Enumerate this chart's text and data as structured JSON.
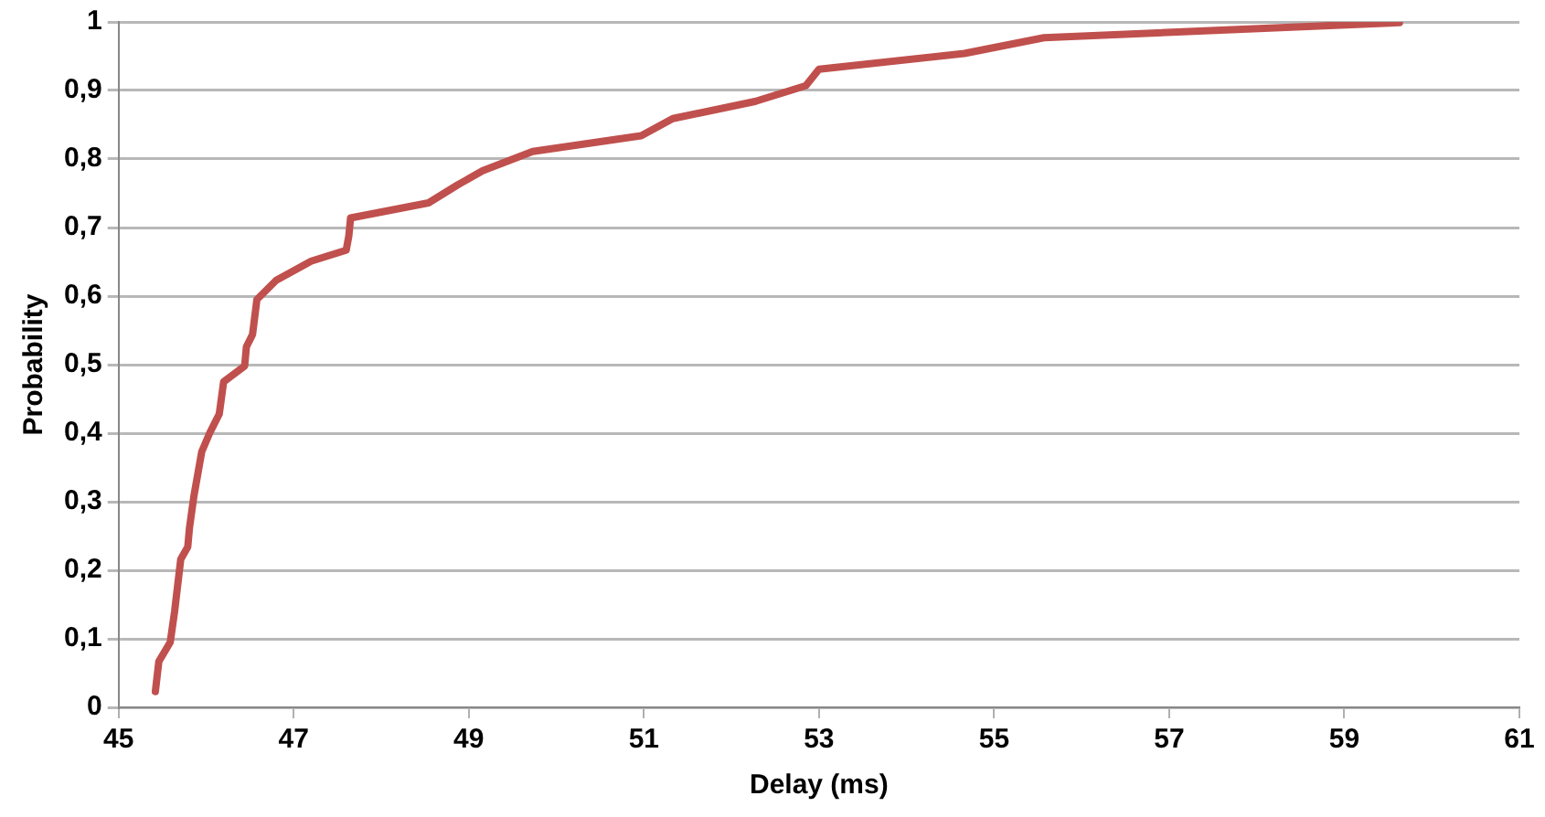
{
  "chart_data": {
    "type": "line",
    "xlabel": "Delay (ms)",
    "ylabel": "Probability",
    "xlim": [
      45,
      61
    ],
    "xticks": [
      45,
      47,
      49,
      51,
      53,
      55,
      57,
      59,
      61
    ],
    "ylim": [
      0,
      1
    ],
    "yticks": [
      0,
      {
        "value": 0.1,
        "label": "0,1"
      },
      {
        "value": 0.2,
        "label": "0,2"
      },
      {
        "value": 0.3,
        "label": "0,3"
      },
      {
        "value": 0.4,
        "label": "0,4"
      },
      {
        "value": 0.5,
        "label": "0,5"
      },
      {
        "value": 0.6,
        "label": "0,6"
      },
      {
        "value": 0.7,
        "label": "0,7"
      },
      {
        "value": 0.8,
        "label": "0,8"
      },
      {
        "value": 0.9,
        "label": "0,9"
      },
      1
    ],
    "grid": "y",
    "legend": false,
    "marker": "none",
    "line_style": "solid",
    "series": [
      {
        "color": "#c0504d",
        "x": [
          45.42,
          45.46,
          45.59,
          45.64,
          45.71,
          45.79,
          45.81,
          45.86,
          45.95,
          46.04,
          46.15,
          46.2,
          46.44,
          46.46,
          46.53,
          46.58,
          46.8,
          47.2,
          47.6,
          47.63,
          47.65,
          48.54,
          48.87,
          49.16,
          49.73,
          50.97,
          51.33,
          52.27,
          52.85,
          53.0,
          54.66,
          55.57,
          59.63
        ],
        "values": [
          0.023,
          0.067,
          0.095,
          0.14,
          0.216,
          0.234,
          0.262,
          0.308,
          0.373,
          0.4,
          0.428,
          0.475,
          0.498,
          0.526,
          0.544,
          0.595,
          0.623,
          0.651,
          0.667,
          0.688,
          0.714,
          0.736,
          0.762,
          0.783,
          0.811,
          0.834,
          0.859,
          0.884,
          0.907,
          0.931,
          0.954,
          0.977,
          0.999
        ]
      }
    ]
  }
}
